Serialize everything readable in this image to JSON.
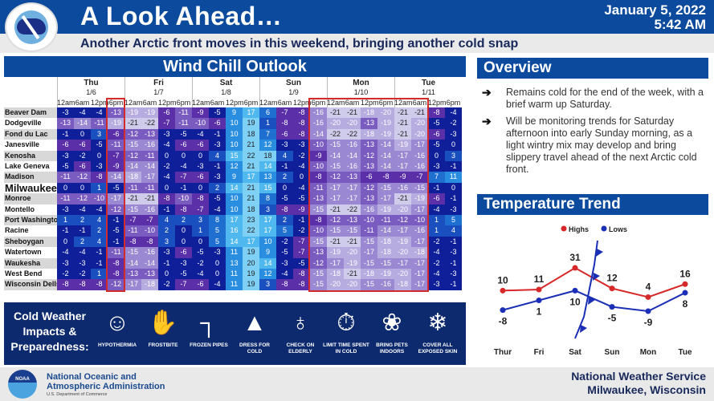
{
  "header": {
    "title": "A Look Ahead…",
    "subtitle": "Another Arctic front moves in this weekend, bringing another cold snap",
    "date": "January 5, 2022",
    "time": "5:42 AM",
    "logo_text": "NATIONAL WEATHER SERVICE"
  },
  "wind_chill": {
    "title": "Wind Chill Outlook",
    "days": [
      {
        "day": "Thu",
        "date": "1/6"
      },
      {
        "day": "Fri",
        "date": "1/7"
      },
      {
        "day": "Sat",
        "date": "1/8"
      },
      {
        "day": "Sun",
        "date": "1/9"
      },
      {
        "day": "Mon",
        "date": "1/10"
      },
      {
        "day": "Tue",
        "date": "1/11"
      }
    ],
    "hours": [
      "12am",
      "6am",
      "12pm",
      "6pm"
    ],
    "rows": [
      {
        "city": "Beaver Dam",
        "values": [
          -3,
          -4,
          -4,
          -13,
          -19,
          -19,
          -6,
          -11,
          -9,
          -5,
          9,
          17,
          6,
          -7,
          -8,
          -16,
          -21,
          -21,
          -18,
          -20,
          -21,
          -21,
          -8,
          -4
        ]
      },
      {
        "city": "Dodgeville",
        "values": [
          -13,
          -14,
          -11,
          -19,
          -21,
          -22,
          -7,
          -11,
          -10,
          -6,
          10,
          19,
          1,
          -8,
          -8,
          -16,
          -20,
          -20,
          -13,
          -19,
          -21,
          -20,
          -5,
          -2
        ]
      },
      {
        "city": "Fond du Lac",
        "values": [
          -1,
          0,
          3,
          -6,
          -12,
          -13,
          -3,
          -5,
          -4,
          -1,
          10,
          18,
          7,
          -6,
          -8,
          -14,
          -22,
          -22,
          -18,
          -19,
          -21,
          -20,
          -6,
          -3
        ]
      },
      {
        "city": "Janesville",
        "values": [
          -6,
          -6,
          -5,
          -11,
          -15,
          -16,
          -4,
          -6,
          -6,
          -3,
          10,
          21,
          12,
          -3,
          -3,
          -10,
          -15,
          -16,
          -13,
          -14,
          -19,
          -17,
          -5,
          0
        ]
      },
      {
        "city": "Kenosha",
        "values": [
          -3,
          -2,
          0,
          -7,
          -12,
          -11,
          0,
          0,
          0,
          4,
          15,
          22,
          18,
          4,
          -2,
          -9,
          -14,
          -14,
          -12,
          -14,
          -17,
          -16,
          0,
          3
        ]
      },
      {
        "city": "Lake Geneva",
        "values": [
          -5,
          -6,
          -3,
          -9,
          -14,
          -14,
          -2,
          -4,
          -3,
          -1,
          12,
          21,
          14,
          -1,
          -4,
          -10,
          -15,
          -16,
          -13,
          -14,
          -17,
          -16,
          -3,
          -1
        ]
      },
      {
        "city": "Madison",
        "values": [
          -11,
          -12,
          -8,
          -14,
          -18,
          -17,
          -4,
          -7,
          -6,
          -3,
          9,
          17,
          13,
          2,
          0,
          -8,
          -12,
          -13,
          -6,
          -8,
          -9,
          -7,
          7,
          11
        ]
      },
      {
        "city": "Milwaukee",
        "values": [
          0,
          0,
          1,
          -5,
          -11,
          -11,
          0,
          -1,
          0,
          2,
          14,
          21,
          15,
          0,
          -4,
          -11,
          -17,
          -17,
          -12,
          -15,
          -16,
          -15,
          -1,
          0
        ]
      },
      {
        "city": "Monroe",
        "values": [
          -11,
          -12,
          -10,
          -17,
          -21,
          -21,
          -8,
          -10,
          -8,
          -5,
          10,
          21,
          8,
          -5,
          -5,
          -13,
          -17,
          -17,
          -13,
          -17,
          -21,
          -19,
          -6,
          -1
        ]
      },
      {
        "city": "Montello",
        "values": [
          -3,
          -4,
          -4,
          -12,
          -15,
          -16,
          -1,
          -8,
          -7,
          -4,
          10,
          18,
          3,
          -8,
          -9,
          -15,
          -21,
          -22,
          -16,
          -19,
          -20,
          -17,
          -4,
          -3
        ]
      },
      {
        "city": "Port Washington",
        "values": [
          1,
          2,
          4,
          -1,
          -7,
          -7,
          4,
          2,
          3,
          8,
          17,
          23,
          17,
          2,
          -1,
          -8,
          -12,
          -13,
          -10,
          -11,
          -12,
          -10,
          1,
          5
        ]
      },
      {
        "city": "Racine",
        "values": [
          -1,
          -1,
          2,
          -5,
          -11,
          -10,
          2,
          0,
          1,
          5,
          16,
          22,
          17,
          5,
          -2,
          -10,
          -15,
          -15,
          -11,
          -14,
          -17,
          -16,
          1,
          4
        ]
      },
      {
        "city": "Sheboygan",
        "values": [
          0,
          2,
          4,
          -1,
          -8,
          -8,
          3,
          0,
          0,
          5,
          14,
          17,
          10,
          -2,
          -7,
          -15,
          -21,
          -21,
          -15,
          -18,
          -19,
          -17,
          -2,
          -1
        ]
      },
      {
        "city": "Watertown",
        "values": [
          -4,
          -4,
          -1,
          -11,
          -15,
          -16,
          -3,
          -6,
          -5,
          -3,
          11,
          19,
          9,
          -5,
          -7,
          -13,
          -19,
          -20,
          -17,
          -18,
          -20,
          -18,
          -4,
          -3
        ]
      },
      {
        "city": "Waukesha",
        "values": [
          -3,
          -3,
          -1,
          -8,
          -14,
          -14,
          -1,
          -3,
          -2,
          0,
          13,
          20,
          14,
          -3,
          -5,
          -12,
          -17,
          -19,
          -15,
          -15,
          -17,
          -17,
          -2,
          -1
        ]
      },
      {
        "city": "West Bend",
        "values": [
          -2,
          -2,
          1,
          -8,
          -13,
          -13,
          0,
          -5,
          -4,
          0,
          11,
          19,
          12,
          -4,
          -8,
          -15,
          -18,
          -21,
          -18,
          -19,
          -20,
          -17,
          -4,
          -3
        ]
      },
      {
        "city": "Wisconsin Dells",
        "values": [
          -8,
          -8,
          -8,
          -12,
          -17,
          -18,
          -2,
          -7,
          -6,
          -4,
          11,
          19,
          3,
          -8,
          -8,
          -15,
          -20,
          -20,
          -15,
          -16,
          -18,
          -17,
          -3,
          -1
        ]
      }
    ],
    "highlight_color": "#d12b2b"
  },
  "impacts": {
    "title": "Cold Weather Impacts & Preparedness:",
    "items": [
      {
        "label": "HYPOTHERMIA",
        "icon": "shivering-person-icon",
        "glyph": "☺"
      },
      {
        "label": "FROSTBITE",
        "icon": "hand-snowflake-icon",
        "glyph": "✋"
      },
      {
        "label": "FROZEN PIPES",
        "icon": "pipe-icon",
        "glyph": "┐"
      },
      {
        "label": "DRESS FOR COLD",
        "icon": "jacket-icon",
        "glyph": "▲"
      },
      {
        "label": "CHECK ON ELDERLY",
        "icon": "elderly-couple-icon",
        "glyph": "♁"
      },
      {
        "label": "LIMIT TIME SPENT IN COLD",
        "icon": "stopwatch-thermometer-icon",
        "glyph": "⏱"
      },
      {
        "label": "BRING PETS INDOORS",
        "icon": "paw-print-icon",
        "glyph": "❀"
      },
      {
        "label": "COVER ALL EXPOSED SKIN",
        "icon": "hat-scarf-mittens-icon",
        "glyph": "❄"
      }
    ]
  },
  "footer": {
    "noaa_line1": "National Oceanic and",
    "noaa_line2": "Atmospheric Administration",
    "noaa_dept": "U.S. Department of Commerce",
    "noaa_logo_text": "NOAA",
    "nws_line1": "National Weather Service",
    "nws_line2": "Milwaukee, Wisconsin"
  },
  "overview": {
    "title": "Overview",
    "items": [
      "Remains cold for the end of the week, with a brief warm up Saturday.",
      "Will be monitoring trends for Saturday afternoon into early Sunday morning, as a light wintry mix may develop and bring slippery travel ahead of the next Arctic cold front."
    ],
    "bullet": "➔"
  },
  "temperature_trend": {
    "title": "Temperature Trend",
    "legend": {
      "highs": "Highs",
      "lows": "Lows"
    },
    "colors": {
      "highs": "#d62828",
      "lows": "#1a2fb5"
    }
  },
  "chart_data": {
    "type": "line",
    "title": "Temperature Trend",
    "categories": [
      "Thur",
      "Fri",
      "Sat",
      "Sun",
      "Mon",
      "Tue"
    ],
    "series": [
      {
        "name": "Highs",
        "values": [
          10,
          11,
          31,
          12,
          4,
          16
        ],
        "color": "#d62828"
      },
      {
        "name": "Lows",
        "values": [
          -8,
          1,
          10,
          -5,
          -9,
          8
        ],
        "color": "#1a2fb5"
      }
    ],
    "annotations": [
      "cold front symbol between Sat and Sun"
    ],
    "legend_position": "top",
    "grid": false
  }
}
